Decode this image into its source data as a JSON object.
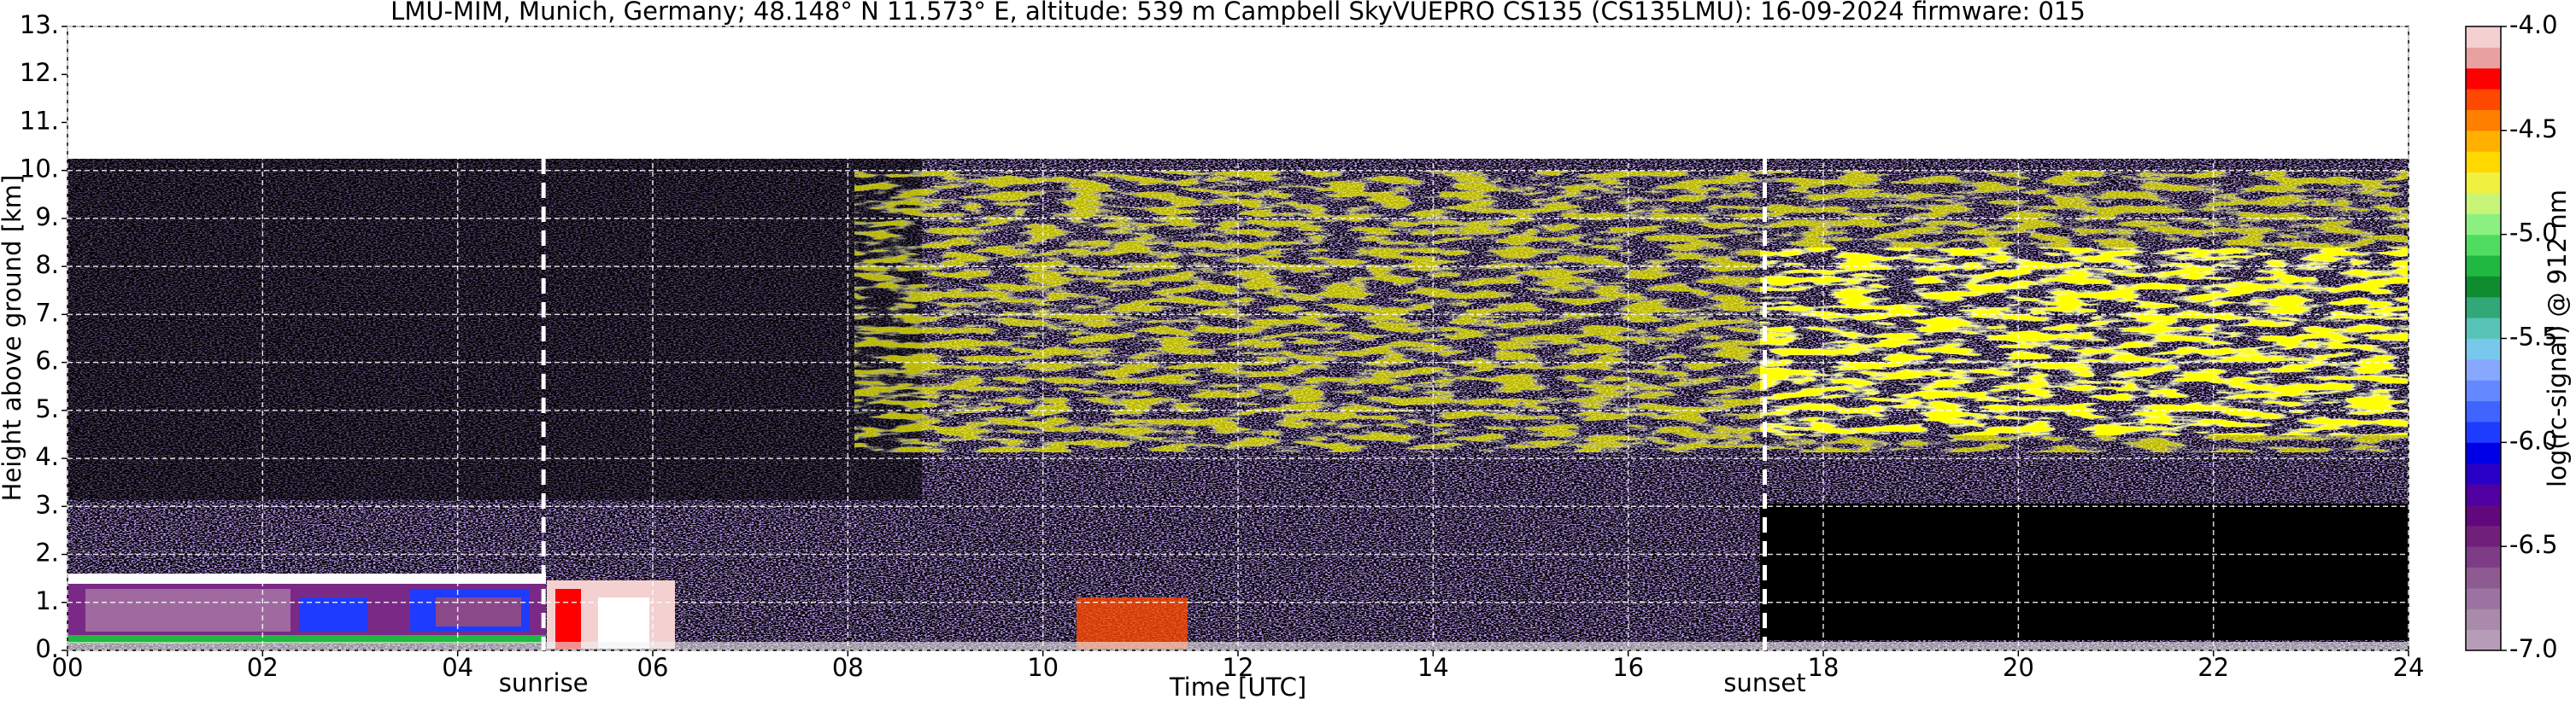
{
  "chart_data": {
    "type": "heatmap",
    "title": "LMU-MIM, Munich, Germany; 48.148° N 11.573° E, altitude: 539 m    Campbell SkyVUEPRO CS135 (CS135LMU): 16-09-2024    firmware: 015",
    "xlabel": "Time [UTC]",
    "ylabel": "Height above ground [km]",
    "xlim": [
      0,
      24
    ],
    "xticks": [
      {
        "value": 0,
        "label": "00"
      },
      {
        "value": 2,
        "label": "02"
      },
      {
        "value": 4,
        "label": "04"
      },
      {
        "value": 6,
        "label": "06"
      },
      {
        "value": 8,
        "label": "08"
      },
      10,
      12,
      14,
      16,
      18,
      20,
      22,
      24
    ],
    "ylim": [
      0,
      13
    ],
    "yticks": [
      {
        "value": 0,
        "label": "0."
      },
      {
        "value": 1,
        "label": "1."
      },
      {
        "value": 2,
        "label": "2."
      },
      {
        "value": 3,
        "label": "3."
      },
      {
        "value": 4,
        "label": "4."
      },
      {
        "value": 5,
        "label": "5."
      },
      {
        "value": 6,
        "label": "6."
      },
      {
        "value": 7,
        "label": "7."
      },
      {
        "value": 8,
        "label": "8."
      },
      {
        "value": 9,
        "label": "9."
      },
      {
        "value": 10,
        "label": "10."
      },
      {
        "value": 11,
        "label": "11."
      },
      {
        "value": 12,
        "label": "12."
      },
      {
        "value": 13,
        "label": "13."
      }
    ],
    "grid": true,
    "annotations": [
      {
        "text": "sunrise",
        "x": 4.88
      },
      {
        "text": "sunset",
        "x": 17.4
      }
    ],
    "colorbar": {
      "label": "log(rc-signal) @ 912 nm",
      "lim": [
        -7,
        -4
      ],
      "ticks": [
        {
          "value": -4,
          "label": "-4.0"
        },
        -4.5,
        {
          "value": -5,
          "label": "-5.0"
        },
        -5.5,
        {
          "value": -6,
          "label": "-6.0"
        },
        -6.5,
        {
          "value": -7,
          "label": "-7.0"
        }
      ],
      "colors": [
        "#b79cb7",
        "#aa8aaa",
        "#9c72a0",
        "#8e5a92",
        "#7e3c86",
        "#70207a",
        "#60087c",
        "#5000a0",
        "#2800c8",
        "#0000e6",
        "#1e3cff",
        "#4064ff",
        "#6488ff",
        "#86a8ff",
        "#78c8ec",
        "#58c4b8",
        "#30a878",
        "#108c30",
        "#20b840",
        "#50dc60",
        "#8cf080",
        "#c8f478",
        "#f0f040",
        "#ffd800",
        "#ffb000",
        "#ff8000",
        "#ff4800",
        "#ff0000",
        "#e8a0a0",
        "#f4d0d0"
      ]
    }
  }
}
